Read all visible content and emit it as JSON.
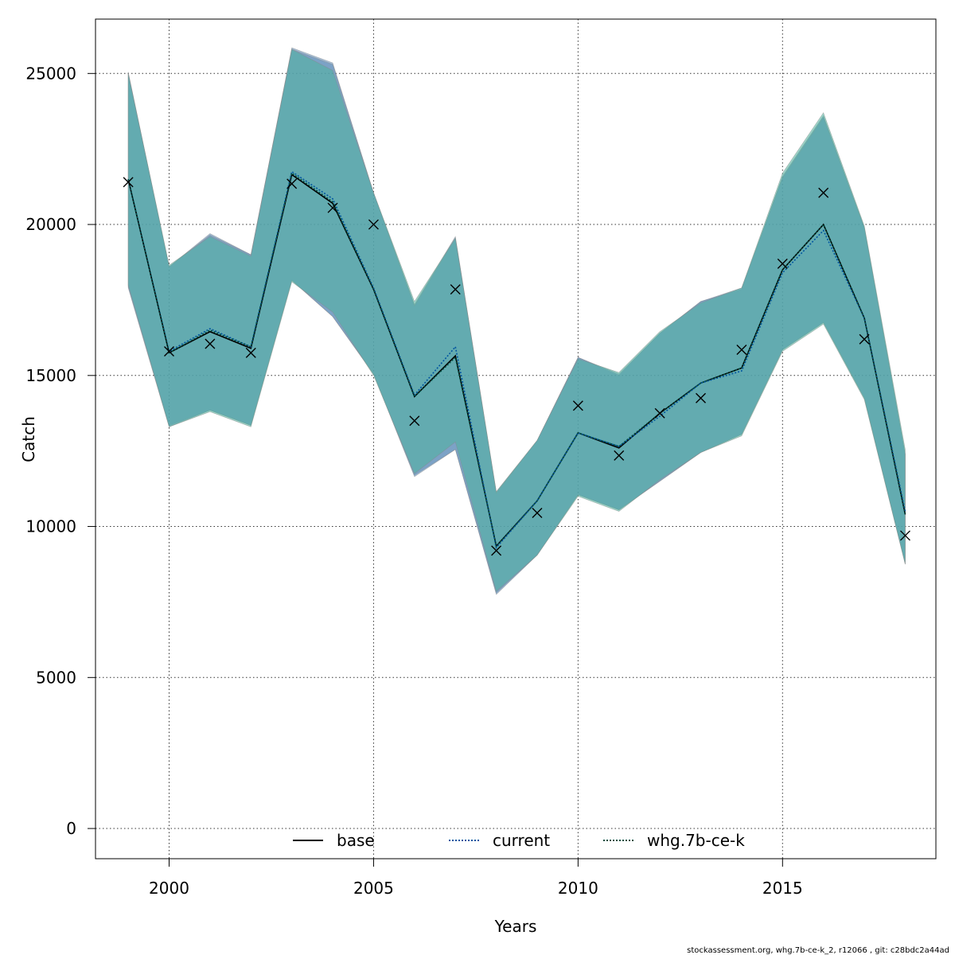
{
  "chart_data": {
    "type": "line",
    "title": "",
    "xlabel": "Years",
    "ylabel": "Catch",
    "xlim": [
      1998.2,
      2018.75
    ],
    "ylim": [
      -1000,
      26800
    ],
    "grid": true,
    "legend_placement": "bottom",
    "x_ticks": [
      2000,
      2005,
      2010,
      2015
    ],
    "y_ticks": [
      0,
      5000,
      10000,
      15000,
      20000,
      25000
    ],
    "x_tick_labels": [
      "2000",
      "2005",
      "2010",
      "2015"
    ],
    "y_tick_labels": [
      "0",
      "5000",
      "10000",
      "15000",
      "20000",
      "25000"
    ],
    "years": [
      1999,
      2000,
      2001,
      2002,
      2003,
      2004,
      2005,
      2006,
      2007,
      2008,
      2009,
      2010,
      2011,
      2012,
      2013,
      2014,
      2015,
      2016,
      2017,
      2018
    ],
    "series": [
      {
        "name": "base",
        "color": "#000000",
        "dash": "solid",
        "band_color": "#5b8ab8",
        "values": [
          21500,
          15750,
          16450,
          15900,
          21650,
          20700,
          17850,
          14300,
          15650,
          9350,
          10850,
          13100,
          12600,
          13750,
          14750,
          15250,
          18500,
          20000,
          16900,
          10400
        ],
        "lower": [
          17950,
          13350,
          13850,
          13350,
          18150,
          16950,
          15050,
          11700,
          12550,
          7800,
          9050,
          11050,
          10550,
          11500,
          12450,
          13050,
          15850,
          16750,
          14250,
          8800
        ],
        "upper": [
          25050,
          18600,
          19700,
          19000,
          25850,
          25350,
          21050,
          17350,
          19600,
          11150,
          12850,
          15600,
          15000,
          16400,
          17450,
          17850,
          21600,
          23600,
          19900,
          12400
        ]
      },
      {
        "name": "current",
        "color": "#0055a0",
        "dash": "dotted",
        "band_color": "#5b8ab8",
        "values": [
          21500,
          15800,
          16550,
          15950,
          21750,
          20850,
          17900,
          14350,
          15950,
          9300,
          10850,
          13100,
          12650,
          13650,
          14750,
          15150,
          18400,
          19800,
          16900,
          10500
        ],
        "lower": [
          17900,
          13300,
          13850,
          13350,
          18150,
          16950,
          15050,
          11650,
          12550,
          7750,
          9050,
          11050,
          10550,
          11500,
          12450,
          13050,
          15850,
          16750,
          14250,
          8750
        ],
        "upper": [
          25000,
          18600,
          19650,
          19000,
          25800,
          25300,
          21050,
          17300,
          19550,
          11100,
          12850,
          15600,
          15050,
          16400,
          17450,
          17900,
          21550,
          23550,
          19900,
          12400
        ]
      },
      {
        "name": "whg.7b-ce-k",
        "color": "#004d40",
        "dash": "dotted",
        "band_color": "#4fb39e",
        "values": [
          21500,
          15750,
          16500,
          15950,
          21700,
          20750,
          17850,
          14300,
          15600,
          9350,
          10850,
          13100,
          12650,
          13750,
          14750,
          15250,
          18500,
          20000,
          16900,
          10400
        ],
        "lower": [
          18000,
          13300,
          13800,
          13300,
          18100,
          17100,
          15000,
          11750,
          12800,
          7850,
          9050,
          11000,
          10500,
          11550,
          12450,
          13000,
          15800,
          16700,
          14200,
          8750
        ],
        "upper": [
          25000,
          18650,
          19600,
          18950,
          25800,
          25100,
          21050,
          17450,
          19550,
          11150,
          12850,
          15550,
          15100,
          16450,
          17400,
          17900,
          21700,
          23700,
          19950,
          12550
        ]
      }
    ],
    "observed": {
      "marker": "x",
      "color": "#000000",
      "values": [
        21400,
        15800,
        16050,
        15750,
        21350,
        20550,
        20000,
        13500,
        17850,
        9200,
        10450,
        14000,
        12350,
        13750,
        14250,
        15850,
        18700,
        21050,
        16200,
        9700
      ]
    }
  },
  "footer": {
    "credit": "stockassessment.org, whg.7b-ce-k_2, r12066 , git: c28bdc2a44ad"
  }
}
